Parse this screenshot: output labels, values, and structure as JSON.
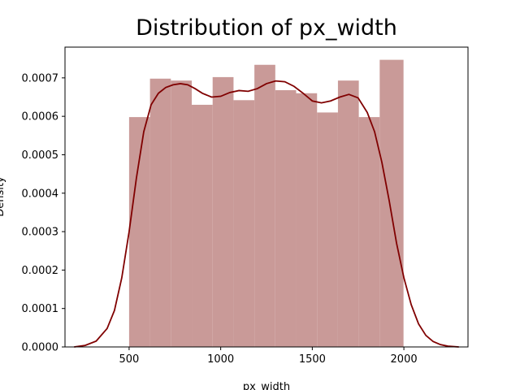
{
  "chart_data": {
    "type": "bar",
    "title": "Distribution of px_width",
    "xlabel": "px_width",
    "ylabel": "Density",
    "xlim": [
      150,
      2350
    ],
    "ylim": [
      0,
      0.00078
    ],
    "grid": false,
    "x_ticks": [
      500,
      1000,
      1500,
      2000
    ],
    "x_tick_labels": [
      "500",
      "1000",
      "1500",
      "2000"
    ],
    "y_ticks": [
      0,
      0.0001,
      0.0002,
      0.0003,
      0.0004,
      0.0005,
      0.0006,
      0.0007
    ],
    "y_tick_labels": [
      "0.0000",
      "0.0001",
      "0.0002",
      "0.0003",
      "0.0004",
      "0.0005",
      "0.0006",
      "0.0007"
    ],
    "histogram": {
      "bin_edges": [
        500,
        614,
        728,
        842,
        956,
        1070,
        1184,
        1298,
        1412,
        1526,
        1640,
        1754,
        1868,
        1998
      ],
      "densities": [
        0.000598,
        0.000698,
        0.000693,
        0.00063,
        0.000702,
        0.000642,
        0.000734,
        0.000668,
        0.00066,
        0.00061,
        0.000693,
        0.000598,
        0.000747
      ],
      "color": "#c99a98"
    },
    "kde": {
      "color": "#800000",
      "x": [
        200,
        260,
        320,
        380,
        420,
        460,
        500,
        540,
        580,
        620,
        660,
        700,
        740,
        780,
        820,
        860,
        900,
        950,
        1000,
        1050,
        1100,
        1150,
        1200,
        1250,
        1300,
        1350,
        1400,
        1450,
        1500,
        1550,
        1600,
        1650,
        1700,
        1750,
        1800,
        1840,
        1880,
        1920,
        1960,
        2000,
        2040,
        2080,
        2120,
        2160,
        2200,
        2240,
        2300
      ],
      "y": [
        0.0,
        4e-06,
        1.5e-05,
        4.8e-05,
        9.5e-05,
        0.00018,
        0.0003,
        0.00044,
        0.00056,
        0.00063,
        0.00066,
        0.000675,
        0.000682,
        0.000685,
        0.000682,
        0.000672,
        0.00066,
        0.00065,
        0.000652,
        0.000662,
        0.000667,
        0.000665,
        0.000672,
        0.000685,
        0.000692,
        0.00069,
        0.000678,
        0.00066,
        0.00064,
        0.000635,
        0.00064,
        0.00065,
        0.000657,
        0.000648,
        0.00061,
        0.00056,
        0.00048,
        0.00038,
        0.00027,
        0.00018,
        0.00011,
        6e-05,
        3e-05,
        1.4e-05,
        6e-06,
        2e-06,
        0.0
      ]
    }
  }
}
